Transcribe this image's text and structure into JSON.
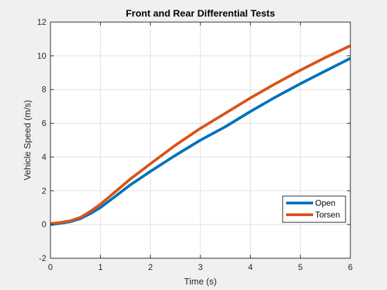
{
  "chart_data": {
    "type": "line",
    "title": "Front and Rear Differential Tests",
    "xlabel": "Time (s)",
    "ylabel": "Vehicle Speed (m/s)",
    "xlim": [
      0,
      6
    ],
    "ylim": [
      -2,
      12
    ],
    "xticks": [
      0,
      1,
      2,
      3,
      4,
      5,
      6
    ],
    "yticks": [
      -2,
      0,
      2,
      4,
      6,
      8,
      10,
      12
    ],
    "grid": true,
    "legend_location": "bottom-right",
    "series": [
      {
        "name": "Open",
        "color": "#0072BD",
        "x": [
          0,
          0.2,
          0.4,
          0.6,
          0.8,
          1.0,
          1.2,
          1.4,
          1.6,
          1.8,
          2.0,
          2.5,
          3.0,
          3.5,
          4.0,
          4.5,
          5.0,
          5.5,
          6.0
        ],
        "y": [
          0,
          0.07,
          0.17,
          0.35,
          0.65,
          1.0,
          1.45,
          1.9,
          2.35,
          2.75,
          3.15,
          4.1,
          5.0,
          5.8,
          6.7,
          7.55,
          8.35,
          9.1,
          9.85
        ]
      },
      {
        "name": "Torsen",
        "color": "#D95319",
        "x": [
          0,
          0.2,
          0.4,
          0.6,
          0.8,
          1.0,
          1.2,
          1.4,
          1.6,
          1.8,
          2.0,
          2.5,
          3.0,
          3.5,
          4.0,
          4.5,
          5.0,
          5.5,
          6.0
        ],
        "y": [
          0.05,
          0.12,
          0.22,
          0.42,
          0.78,
          1.2,
          1.7,
          2.2,
          2.7,
          3.15,
          3.6,
          4.7,
          5.7,
          6.6,
          7.5,
          8.35,
          9.15,
          9.9,
          10.6
        ]
      }
    ]
  }
}
